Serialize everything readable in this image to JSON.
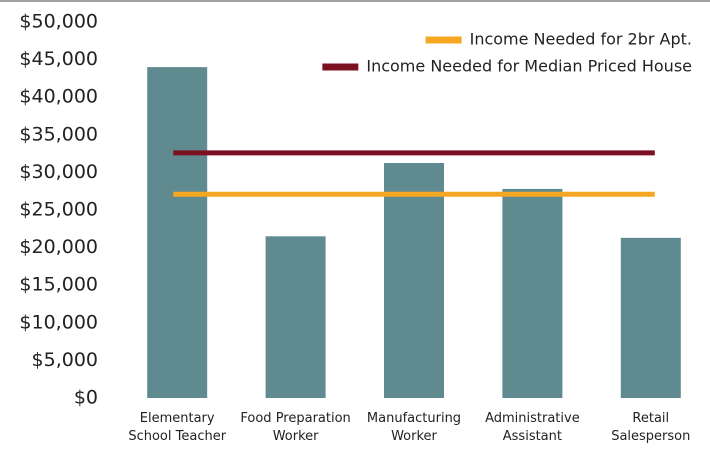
{
  "chart_data": {
    "type": "bar",
    "categories": [
      "Elementary School Teacher",
      "Food Preparation Worker",
      "Manufacturing Worker",
      "Administrative Assistant",
      "Retail Salesperson"
    ],
    "values": [
      44000,
      21500,
      31250,
      27800,
      21300
    ],
    "color": "#5f8a8f",
    "lines": [
      {
        "name": "Income Needed for 2br Apt.",
        "color": "#f5a623",
        "value": 27100
      },
      {
        "name": "Income Needed  for Median Priced House",
        "color": "#7b1020",
        "value": 32600
      }
    ],
    "legend": "upper right",
    "ylim": [
      0,
      50000
    ],
    "yticks": [
      {
        "value": 0,
        "label": "$0"
      },
      {
        "value": 5000,
        "label": "$5,000"
      },
      {
        "value": 10000,
        "label": "$10,000"
      },
      {
        "value": 15000,
        "label": "$15,000"
      },
      {
        "value": 20000,
        "label": "$20,000"
      },
      {
        "value": 25000,
        "label": "$25,000"
      },
      {
        "value": 30000,
        "label": "$30,000"
      },
      {
        "value": 35000,
        "label": "$35,000"
      },
      {
        "value": 40000,
        "label": "$40,000"
      },
      {
        "value": 45000,
        "label": "$45,000"
      },
      {
        "value": 50000,
        "label": "$50,000"
      }
    ]
  }
}
